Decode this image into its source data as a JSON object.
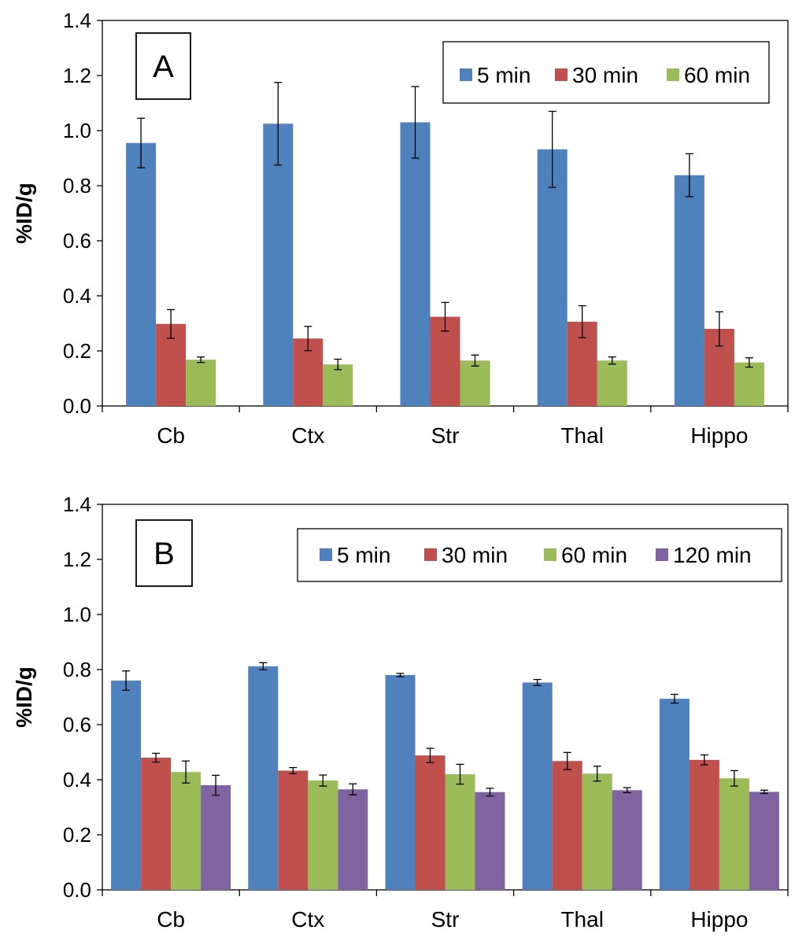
{
  "chart_data": [
    {
      "type": "bar",
      "panel_label": "A",
      "categories": [
        "Cb",
        "Ctx",
        "Str",
        "Thal",
        "Hippo"
      ],
      "ylabel": "%ID/g",
      "xlabel": "",
      "ylim": [
        0,
        1.4
      ],
      "yticks": [
        "0.0",
        "0.2",
        "0.4",
        "0.6",
        "0.8",
        "1.0",
        "1.2",
        "1.4"
      ],
      "grid": false,
      "legend_position": "top-right",
      "series": [
        {
          "name": "5 min",
          "color": "#4F81BD",
          "values": [
            0.955,
            1.025,
            1.03,
            0.932,
            0.838
          ],
          "errors": [
            0.09,
            0.15,
            0.13,
            0.138,
            0.078
          ]
        },
        {
          "name": "30 min",
          "color": "#C0504D",
          "values": [
            0.298,
            0.245,
            0.324,
            0.306,
            0.28
          ],
          "errors": [
            0.052,
            0.044,
            0.052,
            0.058,
            0.062
          ]
        },
        {
          "name": "60 min",
          "color": "#9BBB59",
          "values": [
            0.168,
            0.151,
            0.165,
            0.165,
            0.158
          ],
          "errors": [
            0.01,
            0.019,
            0.02,
            0.013,
            0.017
          ]
        }
      ]
    },
    {
      "type": "bar",
      "panel_label": "B",
      "categories": [
        "Cb",
        "Ctx",
        "Str",
        "Thal",
        "Hippo"
      ],
      "ylabel": "%ID/g",
      "xlabel": "",
      "ylim": [
        0,
        1.4
      ],
      "yticks": [
        "0.0",
        "0.2",
        "0.4",
        "0.6",
        "0.8",
        "1.0",
        "1.2",
        "1.4"
      ],
      "grid": false,
      "legend_position": "top-right",
      "series": [
        {
          "name": "5 min",
          "color": "#4F81BD",
          "values": [
            0.76,
            0.812,
            0.78,
            0.753,
            0.694
          ],
          "errors": [
            0.035,
            0.013,
            0.006,
            0.011,
            0.016
          ]
        },
        {
          "name": "30 min",
          "color": "#C0504D",
          "values": [
            0.48,
            0.433,
            0.488,
            0.468,
            0.472
          ],
          "errors": [
            0.016,
            0.011,
            0.026,
            0.031,
            0.018
          ]
        },
        {
          "name": "60 min",
          "color": "#9BBB59",
          "values": [
            0.428,
            0.397,
            0.42,
            0.422,
            0.405
          ],
          "errors": [
            0.04,
            0.02,
            0.036,
            0.027,
            0.028
          ]
        },
        {
          "name": "120 min",
          "color": "#8064A2",
          "values": [
            0.38,
            0.365,
            0.355,
            0.362,
            0.356
          ],
          "errors": [
            0.036,
            0.02,
            0.014,
            0.009,
            0.006
          ]
        }
      ]
    }
  ]
}
